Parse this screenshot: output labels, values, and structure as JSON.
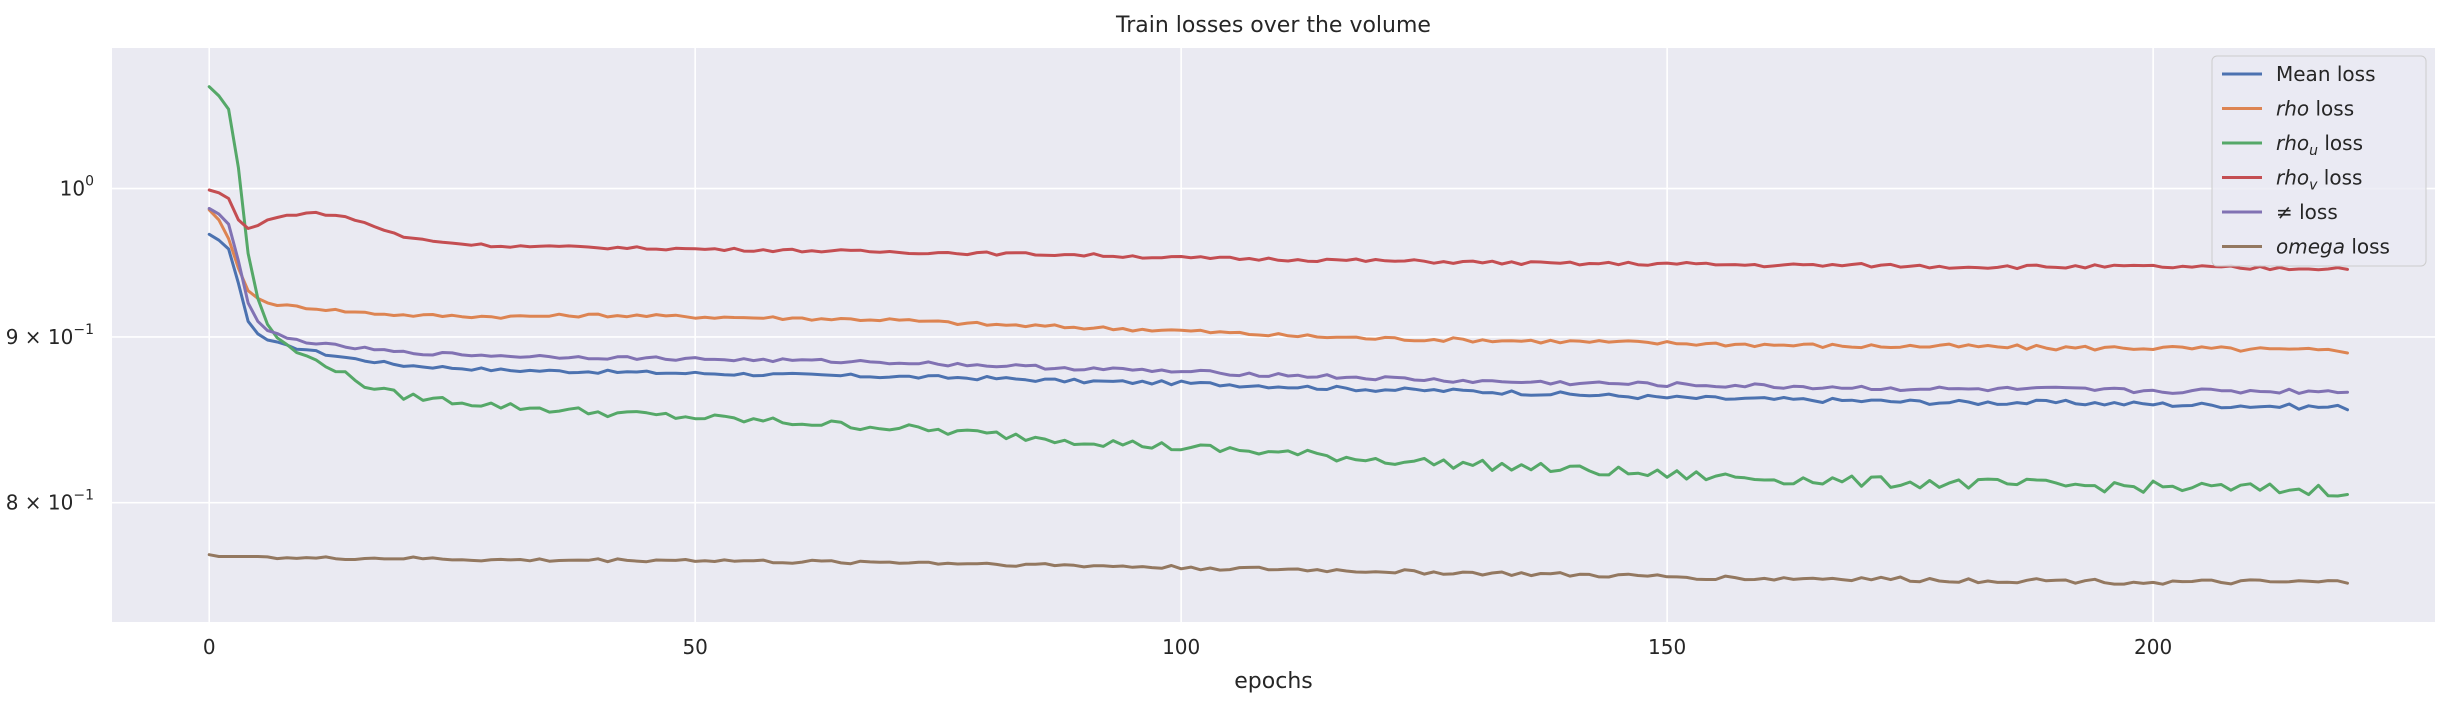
{
  "chart_data": {
    "type": "line",
    "title": "Train losses over the volume",
    "xlabel": "epochs",
    "ylabel": "",
    "yscale": "log",
    "xlim": [
      -10,
      229
    ],
    "ylim": [
      0.735,
      1.105
    ],
    "grid": true,
    "legend_position": "top-right",
    "x_ticks": [
      0,
      50,
      100,
      150,
      200
    ],
    "x_tick_labels": [
      "0",
      "50",
      "100",
      "150",
      "200"
    ],
    "y_ticks": [
      {
        "value": 1.0,
        "base": "10",
        "exp": "0",
        "coef": ""
      },
      {
        "value": 0.9,
        "base": "10",
        "exp": "−1",
        "coef": "9 × "
      },
      {
        "value": 0.8,
        "base": "10",
        "exp": "−1",
        "coef": "8 × "
      }
    ],
    "x": {
      "start": 0,
      "end": 220,
      "step": 1
    },
    "series": [
      {
        "name": "Mean loss",
        "label_main": "Mean",
        "label_sub": "",
        "label_rest": " loss",
        "italic": false,
        "color": "#4c72b0",
        "points": [
          [
            0,
            0.968
          ],
          [
            1,
            0.964
          ],
          [
            2,
            0.958
          ],
          [
            3,
            0.935
          ],
          [
            4,
            0.91
          ],
          [
            5,
            0.902
          ],
          [
            6,
            0.898
          ],
          [
            8,
            0.894
          ],
          [
            10,
            0.892
          ],
          [
            12,
            0.889
          ],
          [
            15,
            0.886
          ],
          [
            20,
            0.882
          ],
          [
            30,
            0.879
          ],
          [
            40,
            0.878
          ],
          [
            50,
            0.877
          ],
          [
            60,
            0.876
          ],
          [
            70,
            0.875
          ],
          [
            80,
            0.874
          ],
          [
            90,
            0.872
          ],
          [
            100,
            0.871
          ],
          [
            110,
            0.869
          ],
          [
            120,
            0.867
          ],
          [
            130,
            0.866
          ],
          [
            140,
            0.864
          ],
          [
            150,
            0.862
          ],
          [
            160,
            0.861
          ],
          [
            170,
            0.86
          ],
          [
            180,
            0.859
          ],
          [
            190,
            0.859
          ],
          [
            200,
            0.858
          ],
          [
            210,
            0.857
          ],
          [
            220,
            0.856
          ]
        ]
      },
      {
        "name": "rho loss",
        "label_main": "rho",
        "label_sub": "",
        "label_rest": " loss",
        "italic": true,
        "color": "#dd8452",
        "points": [
          [
            0,
            0.985
          ],
          [
            1,
            0.978
          ],
          [
            2,
            0.965
          ],
          [
            3,
            0.945
          ],
          [
            4,
            0.93
          ],
          [
            5,
            0.925
          ],
          [
            6,
            0.922
          ],
          [
            8,
            0.92
          ],
          [
            10,
            0.919
          ],
          [
            15,
            0.916
          ],
          [
            20,
            0.914
          ],
          [
            30,
            0.913
          ],
          [
            40,
            0.914
          ],
          [
            50,
            0.913
          ],
          [
            60,
            0.912
          ],
          [
            70,
            0.911
          ],
          [
            80,
            0.908
          ],
          [
            90,
            0.906
          ],
          [
            100,
            0.904
          ],
          [
            110,
            0.901
          ],
          [
            120,
            0.899
          ],
          [
            130,
            0.898
          ],
          [
            140,
            0.897
          ],
          [
            150,
            0.896
          ],
          [
            160,
            0.895
          ],
          [
            170,
            0.894
          ],
          [
            180,
            0.894
          ],
          [
            190,
            0.893
          ],
          [
            200,
            0.893
          ],
          [
            210,
            0.892
          ],
          [
            220,
            0.891
          ]
        ]
      },
      {
        "name": "rho_u loss",
        "label_main": "rho",
        "label_sub": "u",
        "label_rest": " loss",
        "italic": true,
        "color": "#55a868",
        "points": [
          [
            0,
            1.075
          ],
          [
            1,
            1.068
          ],
          [
            2,
            1.058
          ],
          [
            3,
            1.015
          ],
          [
            4,
            0.955
          ],
          [
            5,
            0.925
          ],
          [
            6,
            0.908
          ],
          [
            7,
            0.9
          ],
          [
            8,
            0.894
          ],
          [
            10,
            0.887
          ],
          [
            12,
            0.883
          ],
          [
            14,
            0.876
          ],
          [
            16,
            0.87
          ],
          [
            18,
            0.866
          ],
          [
            20,
            0.863
          ],
          [
            25,
            0.86
          ],
          [
            30,
            0.857
          ],
          [
            40,
            0.853
          ],
          [
            50,
            0.85
          ],
          [
            60,
            0.847
          ],
          [
            70,
            0.844
          ],
          [
            80,
            0.84
          ],
          [
            90,
            0.836
          ],
          [
            100,
            0.832
          ],
          [
            110,
            0.829
          ],
          [
            120,
            0.825
          ],
          [
            130,
            0.822
          ],
          [
            140,
            0.819
          ],
          [
            150,
            0.816
          ],
          [
            160,
            0.814
          ],
          [
            170,
            0.812
          ],
          [
            180,
            0.811
          ],
          [
            190,
            0.81
          ],
          [
            200,
            0.809
          ],
          [
            210,
            0.808
          ],
          [
            220,
            0.807
          ]
        ]
      },
      {
        "name": "rho_v loss",
        "label_main": "rho",
        "label_sub": "v",
        "label_rest": " loss",
        "italic": true,
        "color": "#c44e52",
        "points": [
          [
            0,
            0.999
          ],
          [
            1,
            0.997
          ],
          [
            2,
            0.993
          ],
          [
            3,
            0.978
          ],
          [
            4,
            0.972
          ],
          [
            5,
            0.974
          ],
          [
            6,
            0.978
          ],
          [
            8,
            0.981
          ],
          [
            10,
            0.983
          ],
          [
            12,
            0.982
          ],
          [
            14,
            0.98
          ],
          [
            16,
            0.976
          ],
          [
            18,
            0.971
          ],
          [
            20,
            0.966
          ],
          [
            25,
            0.962
          ],
          [
            30,
            0.96
          ],
          [
            40,
            0.959
          ],
          [
            50,
            0.958
          ],
          [
            60,
            0.957
          ],
          [
            70,
            0.956
          ],
          [
            80,
            0.955
          ],
          [
            90,
            0.954
          ],
          [
            100,
            0.952
          ],
          [
            110,
            0.951
          ],
          [
            120,
            0.95
          ],
          [
            130,
            0.949
          ],
          [
            140,
            0.948
          ],
          [
            150,
            0.948
          ],
          [
            160,
            0.947
          ],
          [
            170,
            0.947
          ],
          [
            180,
            0.946
          ],
          [
            190,
            0.946
          ],
          [
            200,
            0.946
          ],
          [
            210,
            0.945
          ],
          [
            220,
            0.945
          ]
        ]
      },
      {
        "name": "≠ loss",
        "label_main": "≠",
        "label_sub": "",
        "label_rest": " loss",
        "italic": false,
        "color": "#8172b3",
        "points": [
          [
            0,
            0.986
          ],
          [
            1,
            0.982
          ],
          [
            2,
            0.975
          ],
          [
            3,
            0.95
          ],
          [
            4,
            0.922
          ],
          [
            5,
            0.91
          ],
          [
            6,
            0.904
          ],
          [
            8,
            0.899
          ],
          [
            10,
            0.897
          ],
          [
            12,
            0.895
          ],
          [
            15,
            0.893
          ],
          [
            20,
            0.89
          ],
          [
            30,
            0.888
          ],
          [
            40,
            0.887
          ],
          [
            50,
            0.886
          ],
          [
            60,
            0.885
          ],
          [
            70,
            0.884
          ],
          [
            80,
            0.882
          ],
          [
            90,
            0.88
          ],
          [
            100,
            0.878
          ],
          [
            110,
            0.876
          ],
          [
            120,
            0.874
          ],
          [
            130,
            0.872
          ],
          [
            140,
            0.871
          ],
          [
            150,
            0.87
          ],
          [
            160,
            0.869
          ],
          [
            170,
            0.868
          ],
          [
            180,
            0.867
          ],
          [
            190,
            0.867
          ],
          [
            200,
            0.866
          ],
          [
            210,
            0.866
          ],
          [
            220,
            0.866
          ]
        ]
      },
      {
        "name": "omega loss",
        "label_main": "omega",
        "label_sub": "",
        "label_rest": " loss",
        "italic": true,
        "color": "#937860",
        "points": [
          [
            0,
            0.771
          ],
          [
            1,
            0.77
          ],
          [
            5,
            0.77
          ],
          [
            10,
            0.769
          ],
          [
            20,
            0.769
          ],
          [
            30,
            0.768
          ],
          [
            40,
            0.768
          ],
          [
            50,
            0.768
          ],
          [
            60,
            0.767
          ],
          [
            70,
            0.767
          ],
          [
            80,
            0.766
          ],
          [
            90,
            0.765
          ],
          [
            100,
            0.764
          ],
          [
            110,
            0.763
          ],
          [
            120,
            0.762
          ],
          [
            130,
            0.761
          ],
          [
            140,
            0.76
          ],
          [
            150,
            0.759
          ],
          [
            160,
            0.758
          ],
          [
            170,
            0.758
          ],
          [
            180,
            0.757
          ],
          [
            190,
            0.757
          ],
          [
            200,
            0.756
          ],
          [
            210,
            0.756
          ],
          [
            220,
            0.756
          ]
        ]
      }
    ]
  }
}
